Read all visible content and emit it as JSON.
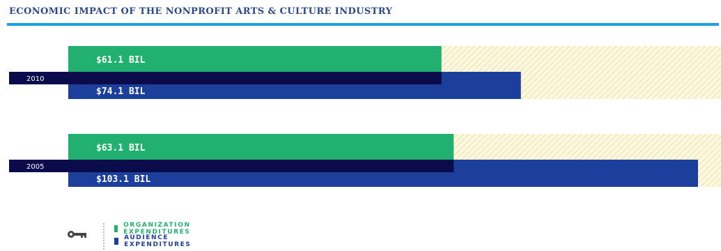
{
  "title": "ECONOMIC IMPACT OF THE NONPROFIT ARTS & CULTURE INDUSTRY",
  "colors": {
    "title": "#2b4a8a",
    "rule": "#1aa1e1",
    "organization": "#22b070",
    "audience": "#1b3f9a",
    "year_band": "#0b0a4a",
    "hatch_bg": "#fbf7e0",
    "hatch_line": "#ece2a3"
  },
  "chart_data": {
    "type": "bar",
    "title": "ECONOMIC IMPACT OF THE NONPROFIT ARTS & CULTURE INDUSTRY",
    "categories": [
      "2010",
      "2005"
    ],
    "series": [
      {
        "name": "ORGANIZATION EXPENDITURES",
        "values": [
          61.1,
          63.1
        ],
        "labels": [
          "$61.1 BIL",
          "$63.1 BIL"
        ]
      },
      {
        "name": "AUDIENCE EXPENDITURES",
        "values": [
          74.1,
          103.1
        ],
        "labels": [
          "$74.1 BIL",
          "$103.1 BIL"
        ]
      }
    ],
    "unit": "BIL",
    "orientation": "horizontal",
    "legend_position": "bottom-left"
  },
  "legend": {
    "icon": "key-icon",
    "items": [
      {
        "label": "ORGANIZATION EXPENDITURES",
        "color": "#22b070"
      },
      {
        "label": "AUDIENCE EXPENDITURES",
        "color": "#1b3f9a"
      }
    ]
  }
}
